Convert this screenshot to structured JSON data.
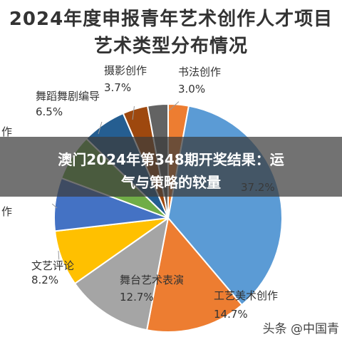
{
  "chart_data": {
    "type": "pie",
    "title": "2024年度申报青年艺术创作人才项目",
    "subtitle": "艺术类型分布情况",
    "slices": [
      {
        "label": "书法创作",
        "value": 3.0,
        "value_label": "3.0%",
        "color": "#ED7D31"
      },
      {
        "label": "",
        "value": 37.2,
        "value_label": "37.2%",
        "color": "#5B9BD5"
      },
      {
        "label": "工艺美术创作",
        "value": 14.7,
        "value_label": "14.7%",
        "color": "#ED7D31"
      },
      {
        "label": "舞台艺术表演",
        "value": 12.7,
        "value_label": "12.7%",
        "color": "#A5A5A5"
      },
      {
        "label": "文艺评论",
        "value": 8.2,
        "value_label": "8.2%",
        "color": "#FFC000"
      },
      {
        "label": "作",
        "value": 7.8,
        "value_label": "",
        "color": "#4472C4"
      },
      {
        "label": "作",
        "value": 6.8,
        "value_label": "",
        "color": "#70AD47"
      },
      {
        "label": "舞蹈舞剧编导",
        "value": 6.5,
        "value_label": "6.5%",
        "color": "#255E91"
      },
      {
        "label": "摄影创作",
        "value": 3.7,
        "value_label": "3.7%",
        "color": "#9E480E"
      },
      {
        "label": "",
        "value": 3.0,
        "value_label": "",
        "color": "#636363"
      }
    ]
  },
  "banner": {
    "line1": "澳门2024年第348期开奖结果：运",
    "line2": "气与策略的较量"
  },
  "watermark": "头条 @中国青"
}
